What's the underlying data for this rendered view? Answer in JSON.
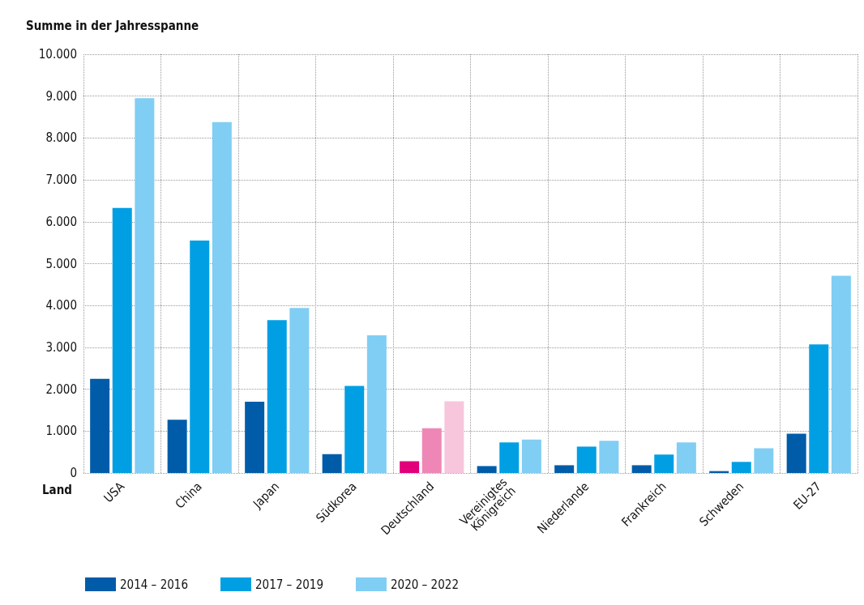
{
  "chart_data": {
    "type": "bar",
    "ylabel": "Summe in der Jahresspanne",
    "xlabel": "Land",
    "categories": [
      "USA",
      "China",
      "Japan",
      "Südkorea",
      "Deutschland",
      "Vereinigtes Königreich",
      "Niederlande",
      "Frankreich",
      "Schweden",
      "EU-27"
    ],
    "series": [
      {
        "name": "2014 – 2016",
        "color": "#005ca9",
        "colors": [
          "#005ca9",
          "#005ca9",
          "#005ca9",
          "#005ca9",
          "#e2007a",
          "#005ca9",
          "#005ca9",
          "#005ca9",
          "#005ca9",
          "#005ca9"
        ],
        "values": [
          2250,
          1270,
          1700,
          450,
          280,
          165,
          185,
          185,
          45,
          940
        ]
      },
      {
        "name": "2017 – 2019",
        "color": "#009fe3",
        "colors": [
          "#009fe3",
          "#009fe3",
          "#009fe3",
          "#009fe3",
          "#ee87b6",
          "#009fe3",
          "#009fe3",
          "#009fe3",
          "#009fe3",
          "#009fe3"
        ],
        "values": [
          6330,
          5550,
          3650,
          2080,
          1070,
          730,
          630,
          440,
          265,
          3070
        ]
      },
      {
        "name": "2020 – 2022",
        "color": "#80cef4",
        "colors": [
          "#80cef4",
          "#80cef4",
          "#80cef4",
          "#80cef4",
          "#f7c6dc",
          "#80cef4",
          "#80cef4",
          "#80cef4",
          "#80cef4",
          "#80cef4"
        ],
        "values": [
          8950,
          8380,
          3940,
          3290,
          1710,
          800,
          770,
          730,
          590,
          4710
        ]
      }
    ],
    "ylim": [
      0,
      10000
    ],
    "yticks": [
      0,
      {
        "value": 1000,
        "label": "1.000"
      },
      {
        "value": 2000,
        "label": "2.000"
      },
      {
        "value": 3000,
        "label": "3.000"
      },
      {
        "value": 4000,
        "label": "4.000"
      },
      {
        "value": 5000,
        "label": "5.000"
      },
      {
        "value": 6000,
        "label": "6.000"
      },
      {
        "value": 7000,
        "label": "7.000"
      },
      {
        "value": 8000,
        "label": "8.000"
      },
      {
        "value": 9000,
        "label": "9.000"
      },
      {
        "value": 10000,
        "label": "10.000"
      }
    ],
    "grid": true,
    "legend": "bottom left"
  }
}
